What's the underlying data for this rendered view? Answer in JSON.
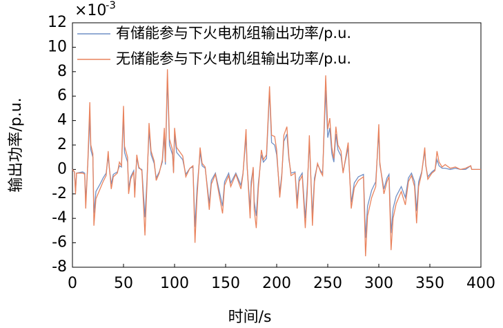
{
  "chart_data": {
    "type": "line",
    "xlabel": "时间/s",
    "ylabel": "输出功率/p.u.",
    "y_scale_base": "×10",
    "y_scale_exponent": "-3",
    "xlim": [
      0,
      400
    ],
    "xticks": [
      0,
      50,
      100,
      150,
      200,
      250,
      300,
      350,
      400
    ],
    "ylim": [
      -8,
      12
    ],
    "yticks": [
      -8,
      -6,
      -4,
      -2,
      0,
      2,
      4,
      6,
      8,
      10,
      12
    ],
    "grid": false,
    "legend": "upper left",
    "x": [
      0,
      2,
      3,
      4,
      10,
      12,
      13,
      15,
      17,
      18,
      20,
      21,
      23,
      27,
      30,
      33,
      35,
      36,
      38,
      40,
      44,
      46,
      48,
      50,
      51,
      54,
      55,
      57,
      60,
      61,
      63,
      65,
      68,
      71,
      73,
      75,
      77,
      80,
      82,
      85,
      88,
      90,
      91,
      93,
      95,
      98,
      99,
      100,
      102,
      108,
      111,
      115,
      118,
      120,
      122,
      125,
      127,
      130,
      134,
      136,
      140,
      147,
      149,
      153,
      155,
      160,
      165,
      167,
      170,
      171,
      174,
      175,
      177,
      178,
      180,
      182,
      185,
      187,
      190,
      193,
      195,
      198,
      200,
      203,
      205,
      207,
      210,
      212,
      214,
      218,
      220,
      222,
      225,
      228,
      230,
      232,
      233,
      235,
      237,
      240,
      243,
      245,
      248,
      250,
      252,
      254,
      256,
      258,
      260,
      263,
      265,
      270,
      271,
      273,
      276,
      280,
      285,
      287,
      289,
      293,
      297,
      300,
      301,
      305,
      308,
      310,
      312,
      314,
      317,
      322,
      326,
      329,
      332,
      335,
      337,
      339,
      342,
      345,
      346,
      348,
      352,
      355,
      357,
      359,
      362,
      365,
      370,
      375,
      380,
      385,
      390,
      391,
      400
    ],
    "series": [
      {
        "name": "有储能参与下火电机组输出功率/p.u.",
        "color": "#6f8fc6",
        "values": [
          0,
          -0.2,
          -1.8,
          -0.3,
          -0.2,
          -0.3,
          -2.6,
          0.4,
          4.3,
          1.6,
          1.0,
          -3.6,
          -1.8,
          -1.2,
          -0.7,
          -0.3,
          1.1,
          0.2,
          -1.2,
          -0.4,
          -0.2,
          0.3,
          0.2,
          4.4,
          1.4,
          0.6,
          -1.6,
          -0.6,
          -0.1,
          -1.9,
          1.0,
          0.1,
          0,
          -3.9,
          -0.8,
          3.2,
          1.2,
          0.5,
          -0.7,
          -0.2,
          0.6,
          2.8,
          0.4,
          7.5,
          2.0,
          1.2,
          -0.2,
          2.9,
          1.4,
          0.8,
          -0.4,
          0.1,
          0.2,
          -4.7,
          -1.6,
          1.4,
          0.3,
          0.1,
          -2.8,
          -0.9,
          -0.3,
          -3.0,
          -1.0,
          -0.3,
          -1.1,
          -0.3,
          -1.3,
          -0.3,
          2.7,
          0.3,
          -3.3,
          -1.0,
          0.1,
          -2.6,
          -3.8,
          -1.2,
          1.2,
          0.6,
          0.9,
          6.4,
          2.2,
          2.0,
          1.2,
          -1.9,
          -0.4,
          2.3,
          2.9,
          0.8,
          -0.3,
          -0.2,
          -2.6,
          -0.7,
          -0.3,
          -4.0,
          -1.3,
          2.3,
          0.3,
          -3.8,
          -0.7,
          0.4,
          -0.1,
          -0.3,
          6.5,
          2.6,
          3.4,
          1.3,
          0.6,
          2.9,
          1.6,
          1.1,
          -0.2,
          1.8,
          0.2,
          -2.7,
          -1.1,
          -0.6,
          -0.4,
          -5.6,
          -3.0,
          -1.7,
          -1.0,
          3.1,
          0.4,
          -1.6,
          -0.7,
          -0.4,
          -5.2,
          -3.2,
          -2.2,
          -1.4,
          -2.3,
          -0.7,
          -0.3,
          -1.0,
          -3.4,
          -1.0,
          -0.2,
          1.5,
          0.3,
          -0.6,
          -0.2,
          0,
          0.8,
          0.3,
          0.1,
          0.1,
          0,
          0.1,
          0,
          0,
          0.3,
          0,
          0
        ]
      },
      {
        "name": "无储能参与下火电机组输出功率/p.u.",
        "color": "#e9825c",
        "values": [
          0,
          -0.2,
          -2,
          -0.3,
          -0.3,
          -0.4,
          -3.2,
          0.5,
          5.5,
          2.0,
          1.3,
          -4.6,
          -2.4,
          -1.6,
          -1.0,
          -0.5,
          1.5,
          0.3,
          -1.6,
          -0.6,
          -0.3,
          0.6,
          0.3,
          5.2,
          1.9,
          1.0,
          -2.0,
          -0.8,
          -0.2,
          -2.3,
          1.2,
          0.2,
          -0.1,
          -5.4,
          -1.2,
          3.8,
          1.5,
          0.7,
          -0.9,
          -0.3,
          0.8,
          3.4,
          0.6,
          8.2,
          2.5,
          1.6,
          -0.3,
          3.4,
          1.8,
          1.1,
          -0.6,
          0.1,
          0.3,
          -6.0,
          -2.3,
          1.8,
          0.5,
          0.2,
          -3.3,
          -1.2,
          -0.4,
          -3.6,
          -1.3,
          -0.5,
          -1.4,
          -0.4,
          -1.6,
          -0.4,
          3.3,
          0.4,
          -4.0,
          -1.5,
          0.2,
          -3.3,
          -4.8,
          -1.6,
          1.6,
          0.8,
          1.2,
          6.8,
          2.8,
          2.7,
          1.6,
          -2.3,
          -0.6,
          2.8,
          3.5,
          1.0,
          -0.5,
          -0.3,
          -3.2,
          -1.0,
          -0.5,
          -4.8,
          -1.8,
          2.8,
          0.5,
          -4.6,
          -1.0,
          0.5,
          -0.2,
          -0.5,
          7.7,
          3.3,
          4.2,
          1.8,
          0.9,
          3.5,
          2.0,
          1.5,
          -0.3,
          2.2,
          0.3,
          -3.2,
          -1.5,
          -0.9,
          -0.6,
          -7.1,
          -3.8,
          -2.3,
          -1.4,
          3.7,
          0.6,
          -2.0,
          -1.0,
          -0.6,
          -6.6,
          -4.0,
          -2.8,
          -1.8,
          -2.9,
          -1.0,
          -0.5,
          -1.4,
          -4.4,
          -1.4,
          -0.3,
          1.8,
          0.4,
          -0.8,
          -0.3,
          -0.1,
          1.5,
          0.6,
          0.2,
          0.4,
          0.1,
          0.2,
          0,
          0.1,
          0.3,
          0,
          0
        ]
      }
    ]
  }
}
